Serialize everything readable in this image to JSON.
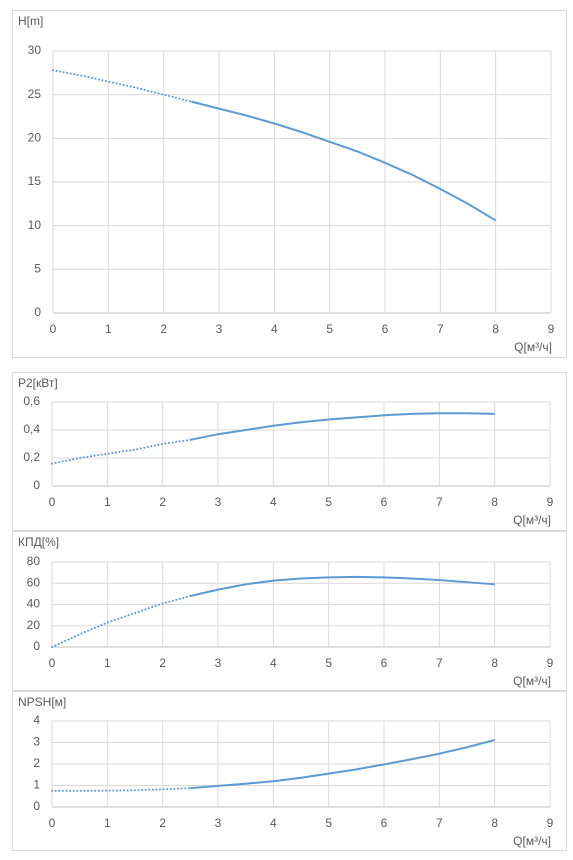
{
  "chart_data": [
    {
      "type": "line",
      "y_label": "H[m]",
      "x_label": "Q[м³/ч]",
      "x": [
        0,
        0.5,
        1,
        1.5,
        2,
        2.5,
        3,
        3.5,
        4,
        4.5,
        5,
        5.5,
        6,
        6.5,
        7,
        7.5,
        8
      ],
      "series": [
        {
          "color": "#5b9bd5",
          "style": "dotted",
          "values": [
            27.8,
            27.2,
            26.5,
            25.8,
            25.0,
            24.2,
            null,
            null,
            null,
            null,
            null,
            null,
            null,
            null,
            null,
            null,
            null
          ]
        },
        {
          "color": "#5b9bd5",
          "style": "solid",
          "values": [
            null,
            null,
            null,
            null,
            null,
            24.2,
            23.4,
            22.6,
            21.7,
            20.7,
            19.6,
            18.5,
            17.2,
            15.8,
            14.2,
            12.5,
            10.6
          ]
        }
      ],
      "xlim": [
        0,
        9
      ],
      "xticks": [
        0,
        1,
        2,
        3,
        4,
        5,
        6,
        7,
        8,
        9
      ],
      "ylim": [
        0,
        30
      ],
      "yticks": [
        0,
        5,
        10,
        15,
        20,
        25,
        30
      ],
      "grid": true
    },
    {
      "type": "line",
      "y_label": "P2[кВт]",
      "x_label": "Q[м³/ч]",
      "x": [
        0,
        0.5,
        1,
        1.5,
        2,
        2.5,
        3,
        3.5,
        4,
        4.5,
        5,
        5.5,
        6,
        6.5,
        7,
        7.5,
        8
      ],
      "series": [
        {
          "color": "#5b9bd5",
          "style": "dotted",
          "values": [
            0.16,
            0.2,
            0.23,
            0.26,
            0.3,
            0.33,
            null,
            null,
            null,
            null,
            null,
            null,
            null,
            null,
            null,
            null,
            null
          ]
        },
        {
          "color": "#5b9bd5",
          "style": "solid",
          "values": [
            null,
            null,
            null,
            null,
            null,
            0.33,
            0.37,
            0.4,
            0.43,
            0.455,
            0.475,
            0.49,
            0.505,
            0.515,
            0.52,
            0.52,
            0.515
          ]
        }
      ],
      "xlim": [
        0,
        9
      ],
      "xticks": [
        0,
        1,
        2,
        3,
        4,
        5,
        6,
        7,
        8,
        9
      ],
      "ylim": [
        0,
        0.6
      ],
      "yticks": [
        0,
        {
          "value": 0.2,
          "label": "0,2"
        },
        {
          "value": 0.4,
          "label": "0,4"
        },
        {
          "value": 0.6,
          "label": "0,6"
        }
      ],
      "grid": true
    },
    {
      "type": "line",
      "y_label": "КПД[%]",
      "x_label": "Q[м³/ч]",
      "x": [
        0,
        0.5,
        1,
        1.5,
        2,
        2.5,
        3,
        3.5,
        4,
        4.5,
        5,
        5.5,
        6,
        6.5,
        7,
        7.5,
        8
      ],
      "series": [
        {
          "color": "#5b9bd5",
          "style": "dotted",
          "values": [
            0,
            12,
            23,
            32,
            41,
            48,
            null,
            null,
            null,
            null,
            null,
            null,
            null,
            null,
            null,
            null,
            null
          ]
        },
        {
          "color": "#5b9bd5",
          "style": "solid",
          "values": [
            null,
            null,
            null,
            null,
            null,
            48,
            54,
            59,
            62.5,
            64.5,
            65.5,
            66,
            65.5,
            64.5,
            63,
            61,
            59
          ]
        }
      ],
      "xlim": [
        0,
        9
      ],
      "xticks": [
        0,
        1,
        2,
        3,
        4,
        5,
        6,
        7,
        8,
        9
      ],
      "ylim": [
        0,
        80
      ],
      "yticks": [
        0,
        20,
        40,
        60,
        80
      ],
      "grid": true
    },
    {
      "type": "line",
      "y_label": "NPSH[м]",
      "x_label": "Q[м³/ч]",
      "x": [
        0,
        0.5,
        1,
        1.5,
        2,
        2.5,
        3,
        3.5,
        4,
        4.5,
        5,
        5.5,
        6,
        6.5,
        7,
        7.5,
        8
      ],
      "series": [
        {
          "color": "#5b9bd5",
          "style": "dotted",
          "values": [
            0.75,
            0.75,
            0.76,
            0.78,
            0.82,
            0.88,
            null,
            null,
            null,
            null,
            null,
            null,
            null,
            null,
            null,
            null,
            null
          ]
        },
        {
          "color": "#5b9bd5",
          "style": "solid",
          "values": [
            null,
            null,
            null,
            null,
            null,
            0.88,
            0.98,
            1.08,
            1.2,
            1.36,
            1.55,
            1.75,
            1.98,
            2.22,
            2.48,
            2.78,
            3.12
          ]
        }
      ],
      "xlim": [
        0,
        9
      ],
      "xticks": [
        0,
        1,
        2,
        3,
        4,
        5,
        6,
        7,
        8,
        9
      ],
      "ylim": [
        0,
        4
      ],
      "yticks": [
        0,
        1,
        2,
        3,
        4
      ],
      "grid": true
    }
  ]
}
